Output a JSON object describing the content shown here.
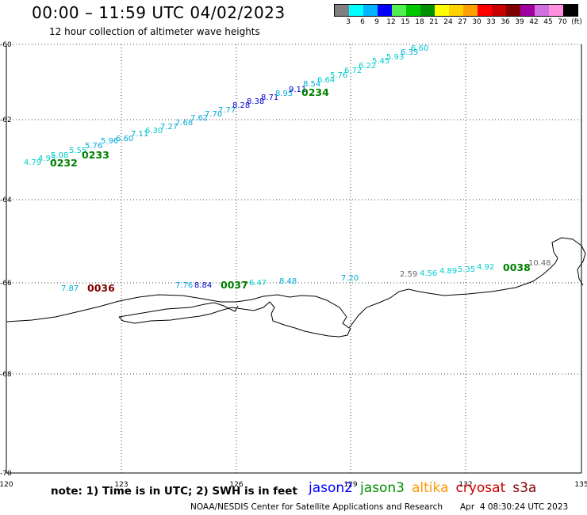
{
  "header": {
    "title": "00:00 – 11:59 UTC 04/02/2023",
    "subtitle": "12 hour collection of altimeter wave heights"
  },
  "legend": {
    "colors": [
      "#808080",
      "#00ffff",
      "#00b4ff",
      "#0000ff",
      "#50f050",
      "#00c800",
      "#009000",
      "#ffff00",
      "#ffd200",
      "#ffa000",
      "#ff0000",
      "#c80000",
      "#800000",
      "#a000a0",
      "#d070e0",
      "#ff90e0",
      "#000000"
    ],
    "labels": [
      "3",
      "6",
      "9",
      "12",
      "15",
      "18",
      "21",
      "24",
      "27",
      "30",
      "33",
      "36",
      "39",
      "42",
      "45",
      "70",
      "(ft)"
    ]
  },
  "map": {
    "lon_range": [
      120,
      135
    ],
    "lat_range": [
      -70,
      -60
    ],
    "x_ticks": [
      "120",
      "123",
      "126",
      "129",
      "132",
      "135"
    ],
    "y_ticks": [
      "-60",
      "-62",
      "-64",
      "-66",
      "-68",
      "-70"
    ],
    "tracks": [
      {
        "time": "0232",
        "color": "#008000"
      },
      {
        "time": "0233",
        "color": "#008000"
      },
      {
        "time": "0234",
        "color": "#008000"
      },
      {
        "time": "0036",
        "color": "#800000"
      },
      {
        "time": "0037",
        "color": "#008000"
      },
      {
        "time": "0038",
        "color": "#008000"
      }
    ],
    "swh_labels": [
      {
        "text": "4.79",
        "color": "#00cccc"
      },
      {
        "text": "4.95",
        "color": "#00cccc"
      },
      {
        "text": "5.08",
        "color": "#00cccc"
      },
      {
        "text": "5.55",
        "color": "#00cccc"
      },
      {
        "text": "5.76",
        "color": "#00aadd"
      },
      {
        "text": "5.96",
        "color": "#00aadd"
      },
      {
        "text": "6.60",
        "color": "#00aadd"
      },
      {
        "text": "7.11",
        "color": "#00aadd"
      },
      {
        "text": "6.30",
        "color": "#00cccc"
      },
      {
        "text": "7.27",
        "color": "#00aadd"
      },
      {
        "text": "7.68",
        "color": "#00aadd"
      },
      {
        "text": "7.62",
        "color": "#00aadd"
      },
      {
        "text": "7.70",
        "color": "#00aadd"
      },
      {
        "text": "7.77",
        "color": "#00aadd"
      },
      {
        "text": "8.28",
        "color": "#0000cc"
      },
      {
        "text": "8.38",
        "color": "#0000cc"
      },
      {
        "text": "8.71",
        "color": "#0000cc"
      },
      {
        "text": "8.95",
        "color": "#00aadd"
      },
      {
        "text": "9.11",
        "color": "#0000cc"
      },
      {
        "text": "8.54",
        "color": "#00aadd"
      },
      {
        "text": "6.64",
        "color": "#00cccc"
      },
      {
        "text": "5.76",
        "color": "#00cccc"
      },
      {
        "text": "6.72",
        "color": "#00cccc"
      },
      {
        "text": "6.22",
        "color": "#00cccc"
      },
      {
        "text": "5.45",
        "color": "#00cccc"
      },
      {
        "text": "5.93",
        "color": "#00cccc"
      },
      {
        "text": "6.35",
        "color": "#00aadd"
      },
      {
        "text": "6.60",
        "color": "#00cccc"
      },
      {
        "text": "7.87",
        "color": "#00aadd"
      },
      {
        "text": "7.76",
        "color": "#00aadd"
      },
      {
        "text": "8.84",
        "color": "#0000cc"
      },
      {
        "text": "6.47",
        "color": "#00cccc"
      },
      {
        "text": "8.48",
        "color": "#00aadd"
      },
      {
        "text": "7.20",
        "color": "#00aadd"
      },
      {
        "text": "2.59",
        "color": "#666666"
      },
      {
        "text": "4.56",
        "color": "#00cccc"
      },
      {
        "text": "4.89",
        "color": "#00cccc"
      },
      {
        "text": "5.35",
        "color": "#00cccc"
      },
      {
        "text": "4.92",
        "color": "#00cccc"
      },
      {
        "text": "10.48",
        "color": "#666666"
      }
    ]
  },
  "footer": {
    "note": "note: 1) Time is in UTC; 2) SWH is in feet",
    "satellites": [
      {
        "name": "jason2",
        "color": "#0000ff"
      },
      {
        "name": "jason3",
        "color": "#009000"
      },
      {
        "name": "altika",
        "color": "#ff9900"
      },
      {
        "name": "cryosat",
        "color": "#cc0000"
      },
      {
        "name": "s3a",
        "color": "#800000"
      }
    ],
    "credit": "NOAA/NESDIS Center for Satellite Applications and Research",
    "date": "Apr  4 08:30:24 UTC 2023"
  }
}
